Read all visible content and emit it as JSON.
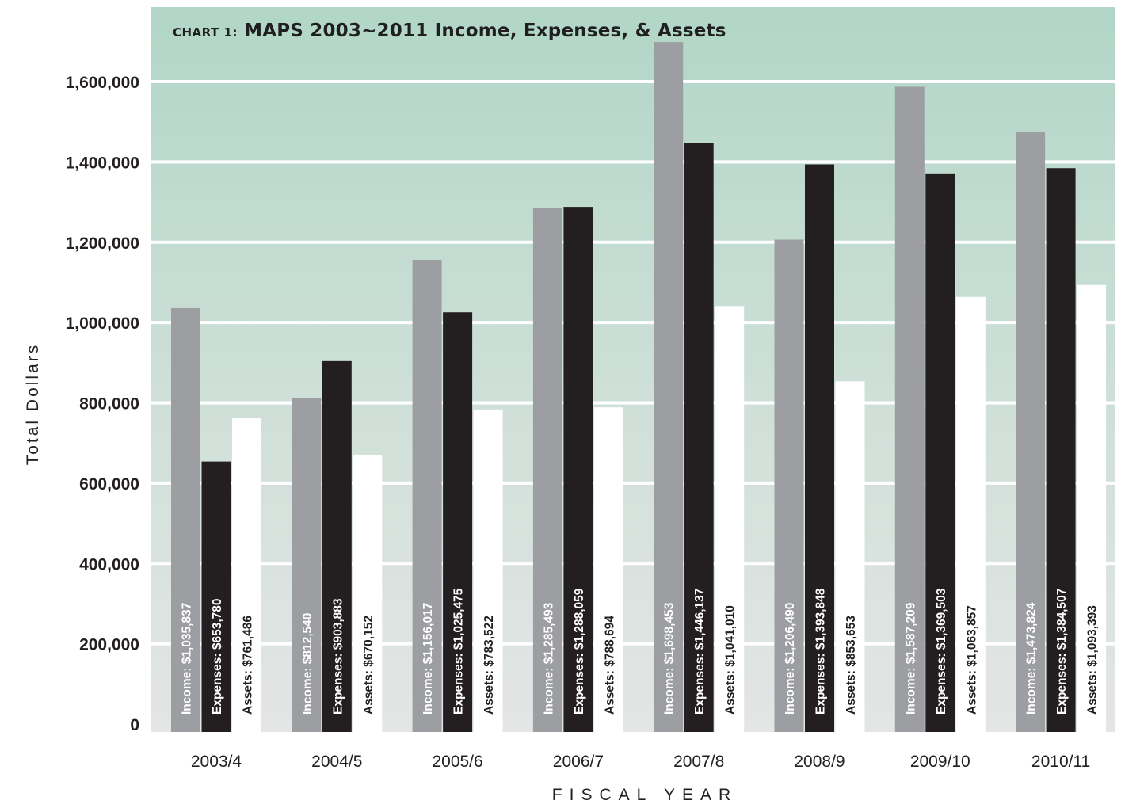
{
  "chart_data": {
    "type": "bar",
    "title_prefix": "CHART 1:",
    "title": "MAPS 2003~2011 Income, Expenses, & Assets",
    "xlabel": "FISCAL YEAR",
    "ylabel": "Total Dollars",
    "ylim": [
      0,
      1800000
    ],
    "yticks": [
      0,
      200000,
      400000,
      600000,
      800000,
      1000000,
      1200000,
      1400000,
      1600000
    ],
    "ytick_labels": [
      "0",
      "200,000",
      "400,000",
      "600,000",
      "800,000",
      "1,000,000",
      "1,200,000",
      "1,400,000",
      "1,600,000"
    ],
    "grid": true,
    "categories": [
      "2003/4",
      "2004/5",
      "2005/6",
      "2006/7",
      "2007/8",
      "2008/9",
      "2009/10",
      "2010/11"
    ],
    "series": [
      {
        "name": "Income",
        "color": "#9d9ea2",
        "values": [
          1035837,
          812540,
          1156017,
          1285493,
          1698453,
          1206490,
          1587209,
          1473824
        ],
        "labels": [
          "Income: $1,035,837",
          "Income: $812,540",
          "Income: $1,156,017",
          "Income: $1,285,493",
          "Income: $1,698,453",
          "Income: $1,206,490",
          "Income: $1,587,209",
          "Income: $1,473,824"
        ]
      },
      {
        "name": "Expenses",
        "color": "#231f20",
        "values": [
          653780,
          903883,
          1025475,
          1288059,
          1446137,
          1393848,
          1369503,
          1384507
        ],
        "labels": [
          "Expenses: $653,780",
          "Expenses: $903,883",
          "Expenses: $1,025,475",
          "Expenses: $1,288,059",
          "Expenses: $1,446,137",
          "Expenses: $1,393,848",
          "Expenses: $1,369,503",
          "Expenses: $1,384,507"
        ]
      },
      {
        "name": "Assets",
        "color": "#ffffff",
        "values": [
          761486,
          670152,
          783522,
          788694,
          1041010,
          853653,
          1063857,
          1093393
        ],
        "labels": [
          "Assets: $761,486",
          "Assets: $670,152",
          "Assets: $783,522",
          "Assets: $788,694",
          "Assets: $1,041,010",
          "Assets: $853,653",
          "Assets: $1,063,857",
          "Assets: $1,093,393"
        ]
      }
    ]
  }
}
